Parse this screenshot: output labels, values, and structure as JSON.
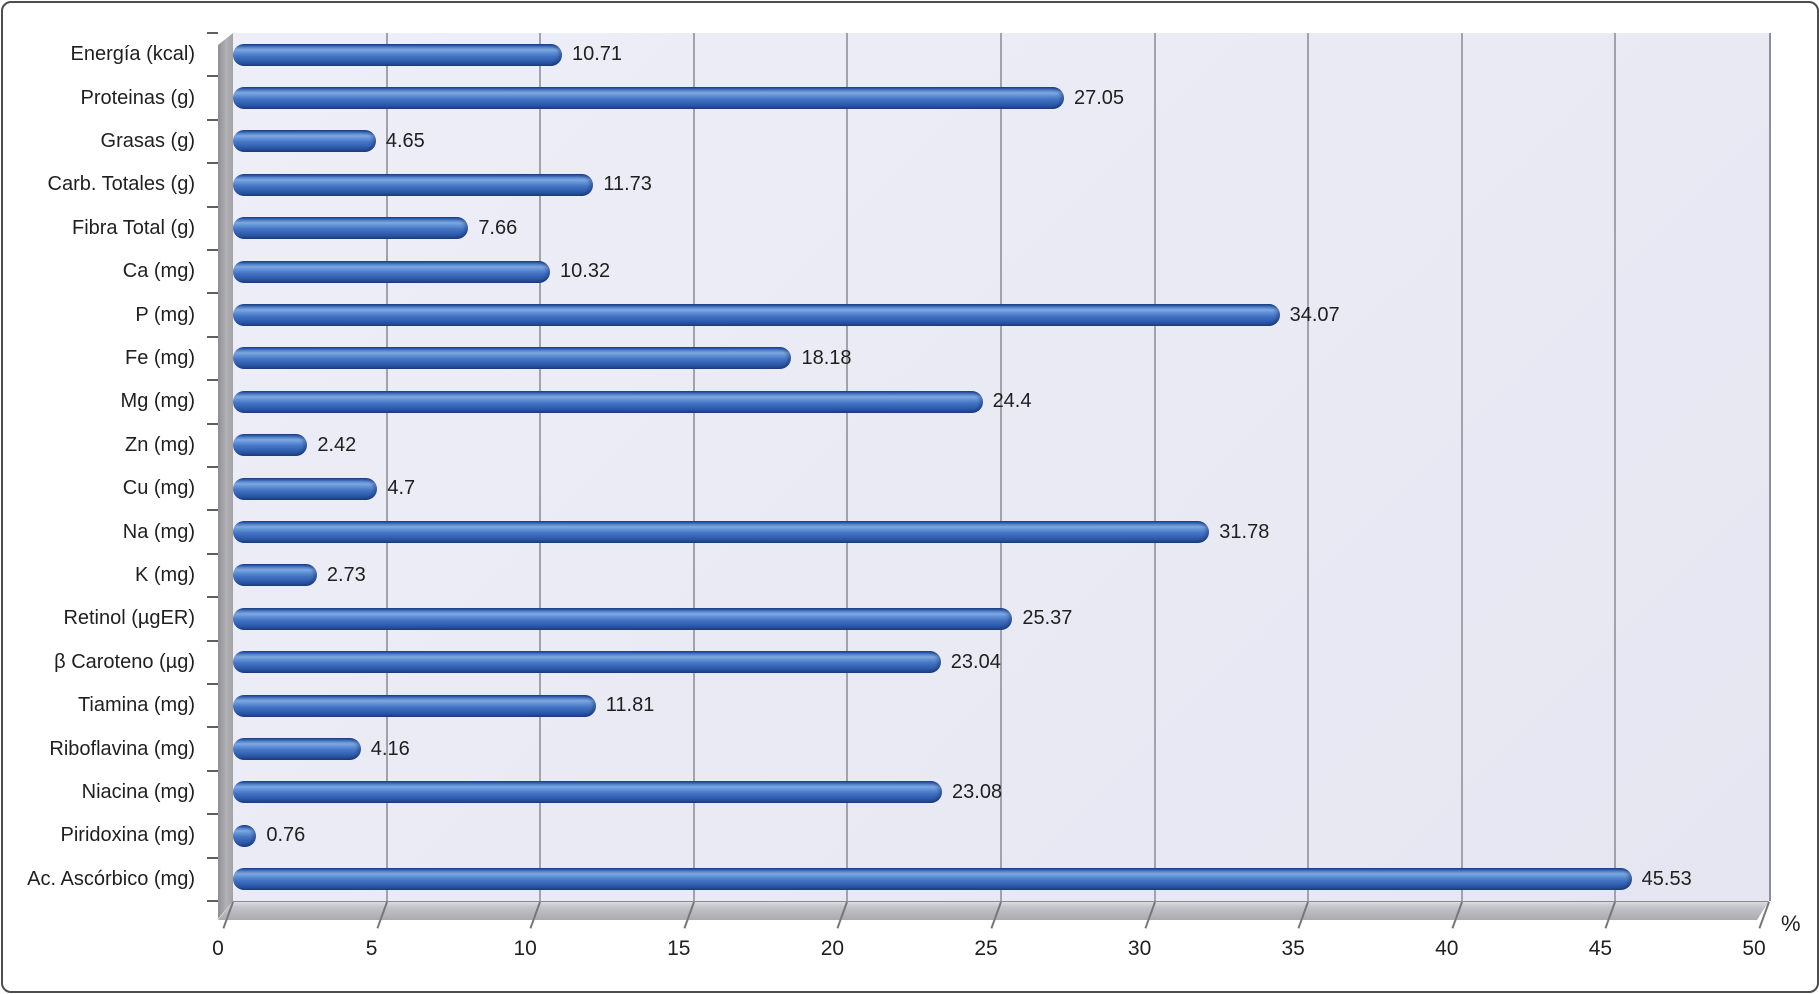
{
  "chart_data": {
    "type": "bar",
    "orientation": "horizontal",
    "title": "",
    "xlabel": "%",
    "xlim": [
      0,
      50
    ],
    "xticks": [
      "0",
      "5",
      "10",
      "15",
      "20",
      "25",
      "30",
      "35",
      "40",
      "45",
      "50"
    ],
    "grid": true,
    "legend": false,
    "categories": [
      "Energía (kcal)",
      "Proteinas (g)",
      "Grasas (g)",
      "Carb. Totales (g)",
      "Fibra Total (g)",
      "Ca (mg)",
      "P (mg)",
      "Fe (mg)",
      "Mg (mg)",
      "Zn (mg)",
      "Cu (mg)",
      "Na (mg)",
      "K (mg)",
      "Retinol (µgER)",
      "β Caroteno (µg)",
      "Tiamina (mg)",
      "Riboflavina (mg)",
      "Niacina (mg)",
      "Piridoxina (mg)",
      "Ac. Ascórbico (mg)"
    ],
    "values": [
      10.71,
      27.05,
      4.65,
      11.73,
      7.66,
      10.32,
      34.07,
      18.18,
      24.4,
      2.42,
      4.7,
      31.78,
      2.73,
      25.37,
      23.04,
      11.81,
      4.16,
      23.08,
      0.76,
      45.53
    ],
    "value_labels": [
      "10.71",
      "27.05",
      "4.65",
      "11.73",
      "7.66",
      "10.32",
      "34.07",
      "18.18",
      "24.4",
      "2.42",
      "4.7",
      "31.78",
      "2.73",
      "25.37",
      "23.04",
      "11.81",
      "4.16",
      "23.08",
      "0.76",
      "45.53"
    ]
  },
  "colors": {
    "bar_blue": "#3A69BC",
    "bar_highlight": "#7EA8E0",
    "bar_dark": "#1D4384",
    "plot_background": "#E9E9F5",
    "gridline": "#A2A2AA",
    "wall_gray": "#AAAAAE",
    "floor_gray": "#B8B8BE",
    "text": "#1F1F1F",
    "frame_border": "#4D4D4D"
  }
}
